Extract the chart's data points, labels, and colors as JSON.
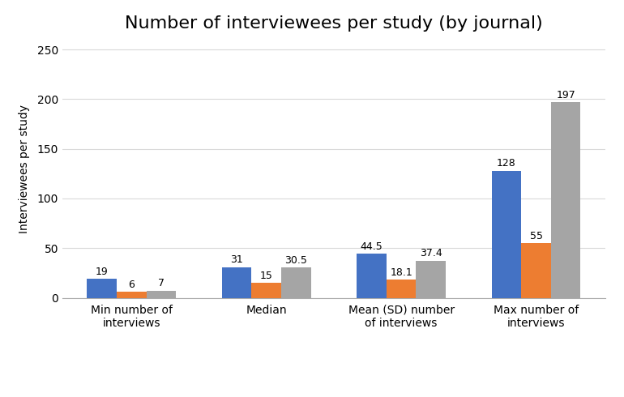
{
  "title": "Number of interviewees per study (by journal)",
  "ylabel": "Interviewees per study",
  "categories": [
    "Min number of\ninterviews",
    "Median",
    "Mean (SD) number\nof interviews",
    "Max number of\ninterviews"
  ],
  "series": {
    "BMJ (n = 21)": [
      19,
      31,
      44.5,
      128
    ],
    "BJHP (n = 53)": [
      6,
      15,
      18.1,
      55
    ],
    "SHI (n = 140)": [
      7,
      30.5,
      37.4,
      197
    ]
  },
  "colors": {
    "BMJ (n = 21)": "#4472C4",
    "BJHP (n = 53)": "#ED7D31",
    "SHI (n = 140)": "#A5A5A5"
  },
  "labels": {
    "BMJ (n = 21)": [
      "19",
      "31",
      "44.5",
      "128"
    ],
    "BJHP (n = 53)": [
      "6",
      "15",
      "18.1",
      "55"
    ],
    "SHI (n = 140)": [
      "7",
      "30.5",
      "37.4",
      "197"
    ]
  },
  "ylim": [
    0,
    260
  ],
  "yticks": [
    0,
    50,
    100,
    150,
    200,
    250
  ],
  "background_color": "#ffffff",
  "grid_color": "#d9d9d9",
  "title_fontsize": 16,
  "axis_label_fontsize": 10,
  "tick_fontsize": 10,
  "bar_label_fontsize": 9,
  "legend_fontsize": 10,
  "bar_width": 0.22
}
